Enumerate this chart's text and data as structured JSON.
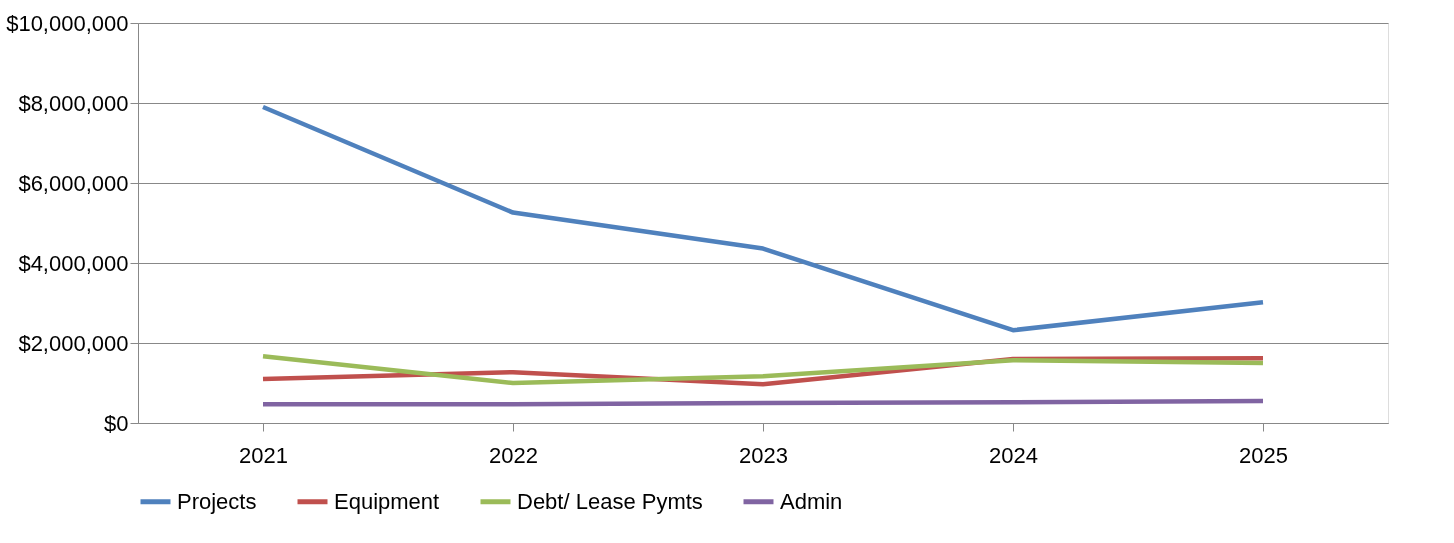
{
  "chart_data": {
    "type": "line",
    "categories": [
      "2021",
      "2022",
      "2023",
      "2024",
      "2025"
    ],
    "ylim": [
      0,
      10000000
    ],
    "yticks": [
      {
        "value": 0,
        "label": "$0"
      },
      {
        "value": 2000000,
        "label": "$2,000,000"
      },
      {
        "value": 4000000,
        "label": "$4,000,000"
      },
      {
        "value": 6000000,
        "label": "$6,000,000"
      },
      {
        "value": 8000000,
        "label": "$8,000,000"
      },
      {
        "value": 10000000,
        "label": "$10,000,000"
      }
    ],
    "grid": "y",
    "legend": "bottom",
    "marker": "none",
    "line_style": "solid",
    "series": [
      {
        "name": "Projects",
        "color": "#4f81bd",
        "values": [
          7900000,
          5260000,
          4360000,
          2320000,
          3020000
        ]
      },
      {
        "name": "Equipment",
        "color": "#c0504d",
        "values": [
          1100000,
          1270000,
          970000,
          1600000,
          1620000
        ]
      },
      {
        "name": "Debt/ Lease Pymts",
        "color": "#9bbb59",
        "values": [
          1670000,
          1000000,
          1170000,
          1570000,
          1500000
        ]
      },
      {
        "name": "Admin",
        "color": "#8064a2",
        "values": [
          470000,
          470000,
          500000,
          520000,
          550000
        ]
      }
    ]
  }
}
